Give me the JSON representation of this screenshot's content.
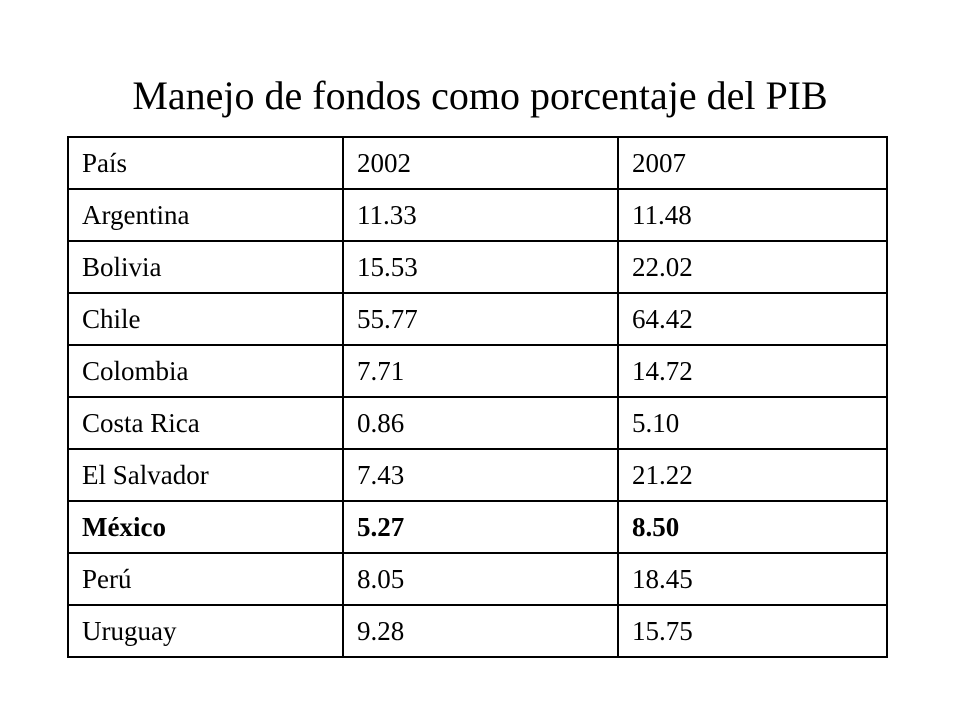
{
  "title": "Manejo de fondos como porcentaje del PIB",
  "table": {
    "header": [
      "País",
      "2002",
      "2007"
    ],
    "rows": [
      [
        "Argentina",
        "11.33",
        "11.48"
      ],
      [
        "Bolivia",
        "15.53",
        "22.02"
      ],
      [
        "Chile",
        "55.77",
        "64.42"
      ],
      [
        "Colombia",
        "7.71",
        "14.72"
      ],
      [
        "Costa Rica",
        "0.86",
        "5.10"
      ],
      [
        "El Salvador",
        "7.43",
        "21.22"
      ],
      [
        "México",
        "5.27",
        "8.50"
      ],
      [
        "Perú",
        "8.05",
        "18.45"
      ],
      [
        "Uruguay",
        "9.28",
        "15.75"
      ]
    ],
    "highlighted_row": "México"
  }
}
